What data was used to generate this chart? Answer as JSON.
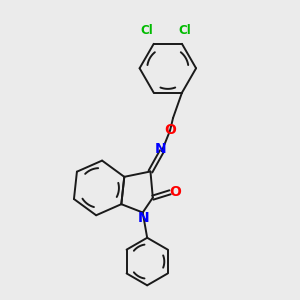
{
  "background_color": "#ebebeb",
  "bond_color": "#1a1a1a",
  "n_color": "#0000ff",
  "o_color": "#ff0000",
  "cl_color": "#00bb00",
  "bond_width": 1.4,
  "font_size": 8.5,
  "figsize": [
    3.0,
    3.0
  ],
  "dpi": 100,
  "xlim": [
    0,
    10
  ],
  "ylim": [
    0,
    10
  ]
}
